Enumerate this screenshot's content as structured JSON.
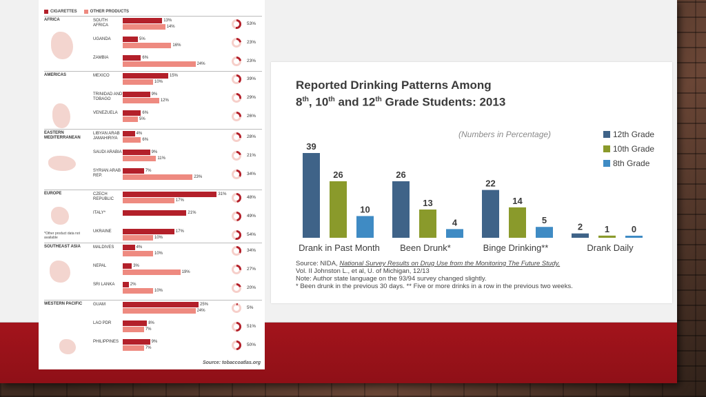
{
  "left": {
    "legend": [
      "CIGARETTES",
      "OTHER PRODUCTS"
    ],
    "colors": {
      "cigarettes": "#b3202a",
      "other": "#ee8a80"
    },
    "regions": [
      {
        "name": "AFRICA",
        "countries": [
          {
            "name": "SOUTH AFRICA",
            "cig": "13%",
            "oth": "14%",
            "ring": "53%",
            "v1": 13,
            "v2": 14,
            "rv": 53
          },
          {
            "name": "UGANDA",
            "cig": "5%",
            "oth": "16%",
            "ring": "23%",
            "v1": 5,
            "v2": 16,
            "rv": 23
          },
          {
            "name": "ZAMBIA",
            "cig": "6%",
            "oth": "24%",
            "ring": "23%",
            "v1": 6,
            "v2": 24,
            "rv": 23
          }
        ]
      },
      {
        "name": "AMERICAS",
        "countries": [
          {
            "name": "MEXICO",
            "cig": "15%",
            "oth": "10%",
            "ring": "39%",
            "v1": 15,
            "v2": 10,
            "rv": 39
          },
          {
            "name": "TRINIDAD AND TOBAGO",
            "cig": "9%",
            "oth": "12%",
            "ring": "29%",
            "v1": 9,
            "v2": 12,
            "rv": 29
          },
          {
            "name": "VENEZUELA",
            "cig": "6%",
            "oth": "5%",
            "ring": "26%",
            "v1": 6,
            "v2": 5,
            "rv": 26
          }
        ]
      },
      {
        "name": "EASTERN MEDITERRANEAN",
        "countries": [
          {
            "name": "LIBYAN ARAB JAMAHIRIYA",
            "cig": "4%",
            "oth": "6%",
            "ring": "28%",
            "v1": 4,
            "v2": 6,
            "rv": 28
          },
          {
            "name": "SAUDI ARABIA",
            "cig": "9%",
            "oth": "11%",
            "ring": "21%",
            "v1": 9,
            "v2": 11,
            "rv": 21
          },
          {
            "name": "SYRIAN ARAB REP.",
            "cig": "7%",
            "oth": "23%",
            "ring": "34%",
            "v1": 7,
            "v2": 23,
            "rv": 34
          }
        ]
      },
      {
        "name": "EUROPE",
        "countries": [
          {
            "name": "CZECH REPUBLIC",
            "cig": "31%",
            "oth": "17%",
            "ring": "48%",
            "v1": 31,
            "v2": 17,
            "rv": 48
          },
          {
            "name": "ITALY*",
            "cig": "21%",
            "oth": "",
            "ring": "49%",
            "v1": 21,
            "v2": 0,
            "rv": 49
          },
          {
            "name": "UKRAINE",
            "cig": "17%",
            "oth": "10%",
            "ring": "54%",
            "v1": 17,
            "v2": 10,
            "rv": 54
          }
        ]
      },
      {
        "name": "SOUTHEAST ASIA",
        "countries": [
          {
            "name": "MALDIVES",
            "cig": "4%",
            "oth": "10%",
            "ring": "34%",
            "v1": 4,
            "v2": 10,
            "rv": 34
          },
          {
            "name": "NEPAL",
            "cig": "3%",
            "oth": "19%",
            "ring": "27%",
            "v1": 3,
            "v2": 19,
            "rv": 27
          },
          {
            "name": "SRI LANKA",
            "cig": "2%",
            "oth": "10%",
            "ring": "20%",
            "v1": 2,
            "v2": 10,
            "rv": 20
          }
        ]
      },
      {
        "name": "WESTERN PACIFIC",
        "countries": [
          {
            "name": "GUAM",
            "cig": "25%",
            "oth": "24%",
            "ring": "5%",
            "v1": 25,
            "v2": 24,
            "rv": 5
          },
          {
            "name": "LAO PDR",
            "cig": "8%",
            "oth": "7%",
            "ring": "51%",
            "v1": 8,
            "v2": 7,
            "rv": 51
          },
          {
            "name": "PHILIPPINES",
            "cig": "9%",
            "oth": "7%",
            "ring": "50%",
            "v1": 9,
            "v2": 7,
            "rv": 50
          }
        ]
      }
    ],
    "note": "*Other product data not available",
    "source": "Source: tobaccoatlas.org"
  },
  "chart_data": {
    "type": "bar",
    "title_line1": "Reported Drinking Patterns Among",
    "title_line2_parts": [
      "8",
      "th",
      ", 10",
      "th",
      " and 12",
      "th",
      " Grade Students: 2013"
    ],
    "subtitle": "(Numbers in Percentage)",
    "categories": [
      "Drank in Past Month",
      "Been Drunk*",
      "Binge Drinking**",
      "Drank Daily"
    ],
    "series": [
      {
        "name": "12th Grade",
        "color": "#3f6388",
        "values": [
          39,
          26,
          22,
          2
        ]
      },
      {
        "name": "10th Grade",
        "color": "#8a9a2b",
        "values": [
          26,
          13,
          14,
          1
        ]
      },
      {
        "name": "8th Grade",
        "color": "#3f8bc4",
        "values": [
          10,
          4,
          5,
          0
        ]
      }
    ],
    "legend_position": "top-right",
    "grid": false,
    "ylim": [
      0,
      45
    ]
  },
  "source_text": {
    "prefix": "Source: NIDA, ",
    "link": "National Survey Results on Drug Use from the Monitoring The Future Study.",
    "line2": "Vol. II Johnston L., et al, U. of Michigan, 12/13",
    "line3": "Note: Author state language on the 93/94 survey changed slightly.",
    "line4": "* Been drunk in the previous 30 days.  ** Five or more drinks in a row in the previous two weeks."
  }
}
